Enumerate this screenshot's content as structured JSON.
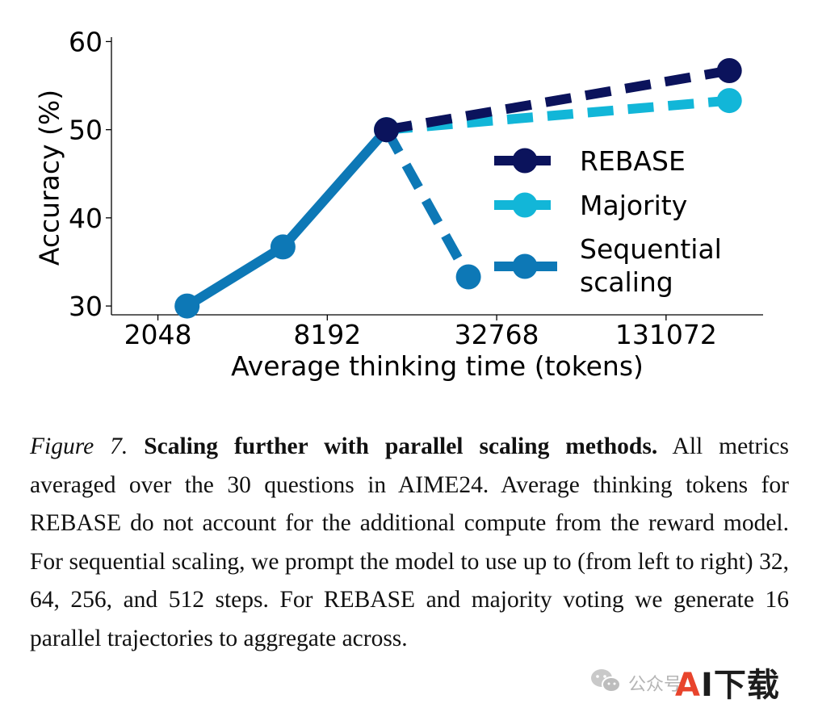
{
  "chart_data": {
    "type": "line",
    "xlabel": "Average thinking time (tokens)",
    "ylabel": "Accuracy (%)",
    "x_scale": "log2",
    "x_ticks": [
      2048,
      8192,
      32768,
      131072
    ],
    "x_tick_labels": [
      "2048",
      "8192",
      "32768",
      "131072"
    ],
    "xlim": [
      1400,
      290000
    ],
    "y_ticks": [
      30,
      40,
      50,
      60
    ],
    "y_tick_labels": [
      "30",
      "40",
      "50",
      "60"
    ],
    "ylim": [
      29,
      60.5
    ],
    "grid": false,
    "legend_position": "right",
    "series": [
      {
        "name": "REBASE",
        "color": "#0b135c",
        "line_style": "dashed",
        "x": [
          13300,
          220000
        ],
        "y": [
          50.0,
          56.7
        ]
      },
      {
        "name": "Majority",
        "color": "#12b6d8",
        "line_style": "dashed",
        "x": [
          13300,
          220000
        ],
        "y": [
          50.0,
          53.3
        ]
      },
      {
        "name": "Sequential scaling",
        "name_lines": [
          "Sequential",
          "scaling"
        ],
        "color": "#0d78b6",
        "line_style": "solid",
        "x": [
          2600,
          5700,
          13300
        ],
        "y": [
          30.0,
          36.7,
          50.0
        ]
      },
      {
        "name": "",
        "color": "#0d78b6",
        "line_style": "dashed",
        "x": [
          13300,
          26000
        ],
        "y": [
          50.0,
          33.3
        ]
      }
    ]
  },
  "caption": {
    "label": "Figure 7.",
    "title": "Scaling further with parallel scaling methods.",
    "body": "All metrics averaged over the 30 questions in AIME24. Average thinking tokens for REBASE do not account for the additional compute from the reward model. For sequential scaling, we prompt the model to use up to (from left to right) 32, 64, 256, and 512 steps. For REBASE and majority voting we generate 16 parallel trajectories to aggregate across."
  },
  "watermark": {
    "text": "公众号",
    "brand_a": "A",
    "brand_rest": "I下载"
  }
}
